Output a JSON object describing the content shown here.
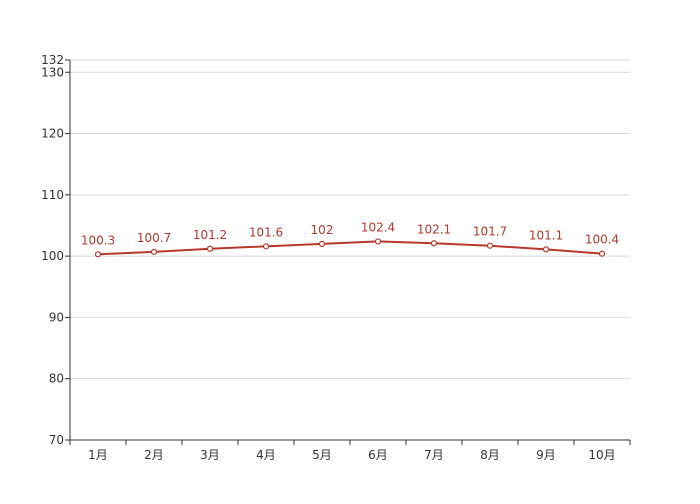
{
  "chart_data": {
    "type": "line",
    "categories": [
      "1月",
      "2月",
      "3月",
      "4月",
      "5月",
      "6月",
      "7月",
      "8月",
      "9月",
      "10月"
    ],
    "series": [
      {
        "values": [
          100.3,
          100.7,
          101.2,
          101.6,
          102,
          102.4,
          102.1,
          101.7,
          101.1,
          100.4
        ],
        "color": "#b5392c"
      }
    ],
    "ylim": [
      70,
      132
    ],
    "yticks": [
      70,
      80,
      90,
      100,
      110,
      120,
      130,
      132
    ],
    "value_labels": [
      "100.3",
      "100.7",
      "101.2",
      "101.6",
      "102",
      "102.4",
      "102.1",
      "101.7",
      "101.1",
      "100.4"
    ],
    "title": "",
    "xlabel": "",
    "ylabel": "",
    "grid": true,
    "legend": "none",
    "markers": "hollow-circle"
  }
}
